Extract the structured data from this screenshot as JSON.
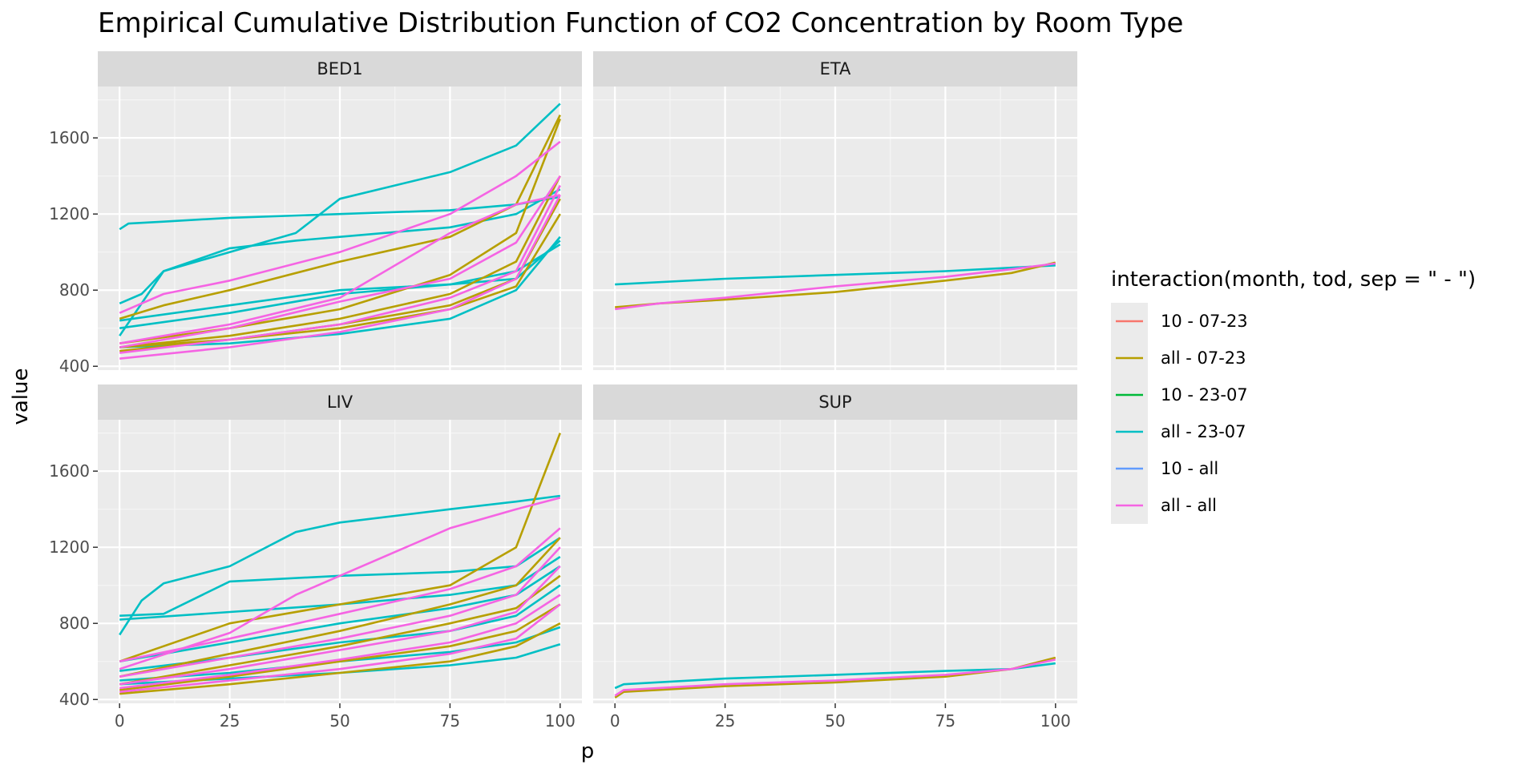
{
  "chart_data": {
    "type": "line",
    "title": "Empirical Cumulative Distribution Function of CO2 Concentration by Room Type",
    "xlabel": "p",
    "ylabel": "value",
    "xlim": [
      0,
      100
    ],
    "ylim": [
      380,
      1870
    ],
    "x_ticks": [
      0,
      25,
      50,
      75,
      100
    ],
    "y_ticks": [
      400,
      800,
      1200,
      1600
    ],
    "grid": true,
    "legend": {
      "title": "interaction(month, tod, sep = \" - \")",
      "position": "right",
      "entries": [
        {
          "label": "10 - 07-23",
          "color": "#F8766D"
        },
        {
          "label": "all - 07-23",
          "color": "#B79F00"
        },
        {
          "label": "10 - 23-07",
          "color": "#00BA38"
        },
        {
          "label": "all - 23-07",
          "color": "#00BFC4"
        },
        {
          "label": "10 - all",
          "color": "#619CFF"
        },
        {
          "label": "all - all",
          "color": "#F564E3"
        }
      ]
    },
    "facets": [
      {
        "name": "BED1",
        "series": [
          {
            "group": "all - 23-07",
            "x": [
              0,
              2,
              10,
              25,
              50,
              75,
              90,
              100
            ],
            "y": [
              1120,
              1150,
              1160,
              1180,
              1200,
              1220,
              1250,
              1290
            ]
          },
          {
            "group": "all - 23-07",
            "x": [
              0,
              5,
              10,
              25,
              40,
              50,
              75,
              90,
              100
            ],
            "y": [
              730,
              780,
              900,
              1000,
              1100,
              1280,
              1420,
              1560,
              1780
            ]
          },
          {
            "group": "all - 23-07",
            "x": [
              0,
              10,
              25,
              40,
              50,
              75,
              90,
              100
            ],
            "y": [
              560,
              900,
              1020,
              1060,
              1080,
              1130,
              1200,
              1330
            ]
          },
          {
            "group": "all - 23-07",
            "x": [
              0,
              25,
              50,
              75,
              90,
              100
            ],
            "y": [
              640,
              720,
              800,
              830,
              860,
              1060
            ]
          },
          {
            "group": "all - 23-07",
            "x": [
              0,
              25,
              50,
              75,
              90,
              100
            ],
            "y": [
              600,
              680,
              780,
              830,
              900,
              1040
            ]
          },
          {
            "group": "all - 23-07",
            "x": [
              0,
              25,
              50,
              75,
              90,
              100
            ],
            "y": [
              500,
              520,
              570,
              650,
              800,
              1080
            ]
          },
          {
            "group": "all - 07-23",
            "x": [
              0,
              10,
              25,
              50,
              75,
              90,
              100
            ],
            "y": [
              650,
              720,
              800,
              950,
              1080,
              1250,
              1720
            ]
          },
          {
            "group": "all - 07-23",
            "x": [
              0,
              25,
              50,
              75,
              90,
              95,
              100
            ],
            "y": [
              520,
              600,
              700,
              880,
              1100,
              1400,
              1700
            ]
          },
          {
            "group": "all - 07-23",
            "x": [
              0,
              25,
              50,
              75,
              90,
              100
            ],
            "y": [
              500,
              560,
              650,
              780,
              950,
              1400
            ]
          },
          {
            "group": "all - 07-23",
            "x": [
              0,
              25,
              50,
              75,
              90,
              100
            ],
            "y": [
              480,
              540,
              620,
              720,
              860,
              1280
            ]
          },
          {
            "group": "all - 07-23",
            "x": [
              0,
              25,
              50,
              75,
              90,
              100
            ],
            "y": [
              500,
              540,
              600,
              700,
              820,
              1200
            ]
          },
          {
            "group": "all - all",
            "x": [
              0,
              10,
              25,
              50,
              75,
              90,
              100
            ],
            "y": [
              680,
              780,
              850,
              1000,
              1200,
              1400,
              1580
            ]
          },
          {
            "group": "all - all",
            "x": [
              0,
              25,
              50,
              75,
              90,
              100
            ],
            "y": [
              520,
              620,
              760,
              1100,
              1250,
              1300
            ]
          },
          {
            "group": "all - all",
            "x": [
              0,
              25,
              50,
              75,
              90,
              100
            ],
            "y": [
              500,
              600,
              740,
              860,
              1050,
              1400
            ]
          },
          {
            "group": "all - all",
            "x": [
              0,
              25,
              50,
              75,
              90,
              100
            ],
            "y": [
              470,
              540,
              620,
              760,
              900,
              1350
            ]
          },
          {
            "group": "all - all",
            "x": [
              0,
              25,
              50,
              75,
              90,
              100
            ],
            "y": [
              440,
              500,
              580,
              700,
              860,
              1300
            ]
          }
        ]
      },
      {
        "name": "ETA",
        "series": [
          {
            "group": "all - 23-07",
            "x": [
              0,
              25,
              50,
              75,
              100
            ],
            "y": [
              830,
              860,
              880,
              900,
              930
            ]
          },
          {
            "group": "all - 07-23",
            "x": [
              0,
              10,
              25,
              50,
              75,
              90,
              100
            ],
            "y": [
              710,
              730,
              750,
              790,
              850,
              890,
              945
            ]
          },
          {
            "group": "all - all",
            "x": [
              0,
              10,
              25,
              50,
              75,
              90,
              100
            ],
            "y": [
              700,
              730,
              760,
              820,
              870,
              910,
              940
            ]
          }
        ]
      },
      {
        "name": "LIV",
        "series": [
          {
            "group": "all - 23-07",
            "x": [
              0,
              5,
              10,
              25,
              40,
              50,
              75,
              90,
              100
            ],
            "y": [
              740,
              920,
              1010,
              1100,
              1280,
              1330,
              1400,
              1440,
              1470
            ]
          },
          {
            "group": "all - 23-07",
            "x": [
              0,
              10,
              25,
              50,
              75,
              90,
              100
            ],
            "y": [
              840,
              850,
              1020,
              1050,
              1070,
              1100,
              1250
            ]
          },
          {
            "group": "all - 23-07",
            "x": [
              0,
              25,
              50,
              75,
              90,
              100
            ],
            "y": [
              820,
              860,
              900,
              950,
              1000,
              1150
            ]
          },
          {
            "group": "all - 23-07",
            "x": [
              0,
              25,
              50,
              75,
              90,
              100
            ],
            "y": [
              600,
              700,
              800,
              880,
              950,
              1100
            ]
          },
          {
            "group": "all - 23-07",
            "x": [
              0,
              25,
              50,
              75,
              90,
              100
            ],
            "y": [
              550,
              620,
              700,
              760,
              840,
              1000
            ]
          },
          {
            "group": "all - 23-07",
            "x": [
              0,
              25,
              50,
              75,
              90,
              100
            ],
            "y": [
              500,
              540,
              600,
              650,
              700,
              780
            ]
          },
          {
            "group": "all - 23-07",
            "x": [
              0,
              25,
              50,
              75,
              90,
              100
            ],
            "y": [
              480,
              510,
              540,
              580,
              620,
              690
            ]
          },
          {
            "group": "all - 07-23",
            "x": [
              0,
              25,
              50,
              75,
              90,
              95,
              100
            ],
            "y": [
              600,
              800,
              900,
              1000,
              1200,
              1500,
              1800
            ]
          },
          {
            "group": "all - 07-23",
            "x": [
              0,
              25,
              50,
              75,
              90,
              100
            ],
            "y": [
              520,
              640,
              760,
              900,
              1000,
              1250
            ]
          },
          {
            "group": "all - 07-23",
            "x": [
              0,
              25,
              50,
              75,
              90,
              100
            ],
            "y": [
              480,
              580,
              680,
              800,
              880,
              1050
            ]
          },
          {
            "group": "all - 07-23",
            "x": [
              0,
              25,
              50,
              75,
              90,
              100
            ],
            "y": [
              450,
              520,
              600,
              680,
              760,
              900
            ]
          },
          {
            "group": "all - 07-23",
            "x": [
              0,
              25,
              50,
              75,
              90,
              100
            ],
            "y": [
              430,
              480,
              540,
              600,
              680,
              800
            ]
          },
          {
            "group": "all - all",
            "x": [
              0,
              25,
              40,
              50,
              75,
              90,
              100
            ],
            "y": [
              560,
              750,
              950,
              1050,
              1300,
              1400,
              1460
            ]
          },
          {
            "group": "all - all",
            "x": [
              0,
              25,
              50,
              75,
              90,
              100
            ],
            "y": [
              600,
              720,
              850,
              980,
              1100,
              1300
            ]
          },
          {
            "group": "all - all",
            "x": [
              0,
              25,
              50,
              75,
              90,
              100
            ],
            "y": [
              520,
              620,
              720,
              840,
              950,
              1200
            ]
          },
          {
            "group": "all - all",
            "x": [
              0,
              25,
              50,
              75,
              90,
              100
            ],
            "y": [
              480,
              560,
              660,
              760,
              860,
              1100
            ]
          },
          {
            "group": "all - all",
            "x": [
              0,
              25,
              50,
              75,
              90,
              100
            ],
            "y": [
              460,
              530,
              610,
              700,
              800,
              950
            ]
          },
          {
            "group": "all - all",
            "x": [
              0,
              25,
              50,
              75,
              90,
              100
            ],
            "y": [
              440,
              500,
              560,
              640,
              720,
              900
            ]
          }
        ]
      },
      {
        "name": "SUP",
        "series": [
          {
            "group": "all - 23-07",
            "x": [
              0,
              2,
              25,
              50,
              75,
              90,
              100
            ],
            "y": [
              460,
              480,
              510,
              530,
              550,
              560,
              590
            ]
          },
          {
            "group": "all - 07-23",
            "x": [
              0,
              2,
              25,
              50,
              75,
              90,
              100
            ],
            "y": [
              410,
              440,
              470,
              490,
              520,
              560,
              620
            ]
          },
          {
            "group": "all - all",
            "x": [
              0,
              2,
              25,
              50,
              75,
              90,
              100
            ],
            "y": [
              420,
              450,
              480,
              500,
              530,
              560,
              610
            ]
          }
        ]
      }
    ]
  }
}
